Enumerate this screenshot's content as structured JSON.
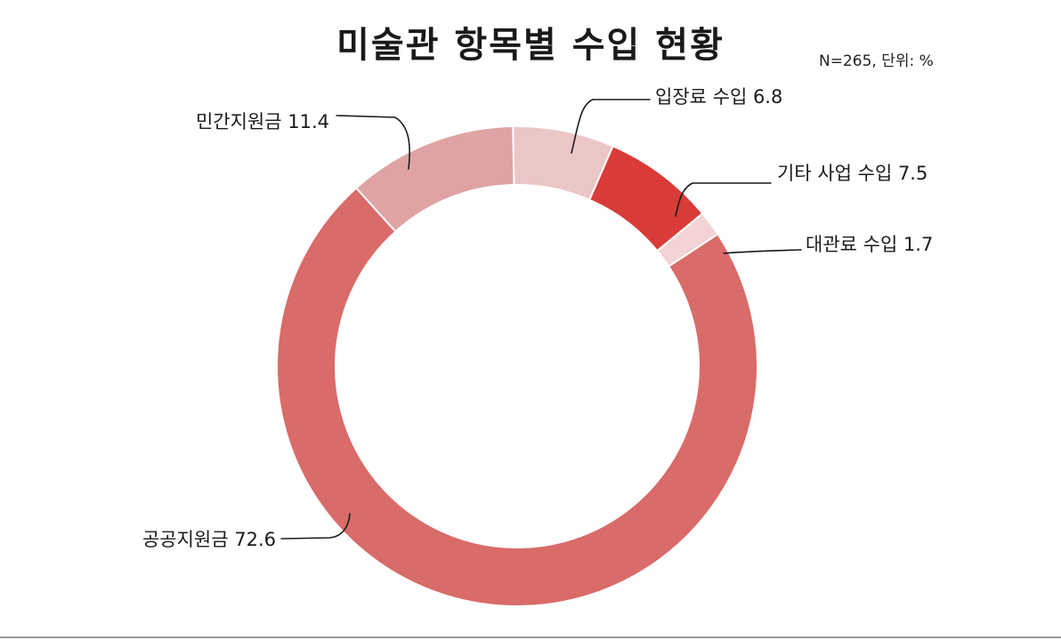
{
  "chart_data": {
    "type": "pie",
    "variant": "donut",
    "title": "미술관 항목별 수입 현황",
    "note": "N=265, 단위: %",
    "start_angle_deg": -1,
    "slices": [
      {
        "label": "입장료 수입",
        "value": 6.8,
        "color": "#ebc6c6"
      },
      {
        "label": "기타 사업 수입",
        "value": 7.5,
        "color": "#d83b38"
      },
      {
        "label": "대관료 수입",
        "value": 1.7,
        "color": "#f3d3d3"
      },
      {
        "label": "공공지원금",
        "value": 72.6,
        "color": "#d96b69"
      },
      {
        "label": "민간지원금",
        "value": 11.4,
        "color": "#dfa3a4"
      }
    ]
  }
}
